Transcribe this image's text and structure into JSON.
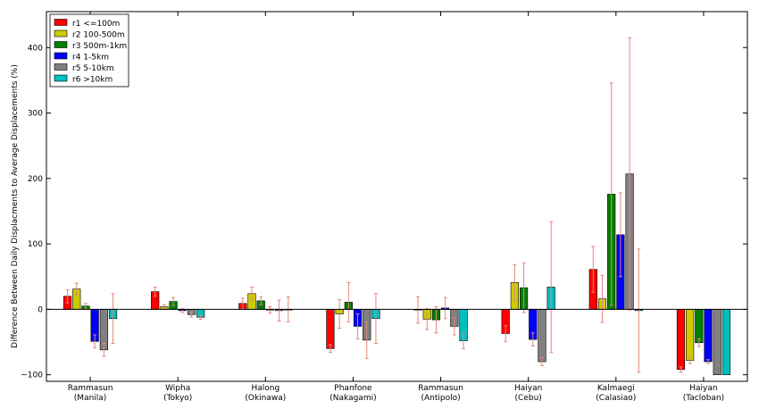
{
  "chart_data": {
    "type": "bar",
    "title": "",
    "xlabel": "",
    "ylabel": "Difference Between Daily Displacments to Average Displacements (%)",
    "ylim": [
      -110,
      455
    ],
    "yticks": [
      -100,
      0,
      100,
      200,
      300,
      400
    ],
    "grid": false,
    "legend_position": "top-left",
    "categories": [
      [
        "Rammasun",
        "(Manila)"
      ],
      [
        "Wipha",
        "(Tokyo)"
      ],
      [
        "Halong",
        "(Okinawa)"
      ],
      [
        "Phanfone",
        "(Nakagami)"
      ],
      [
        "Rammasun",
        "(Antipolo)"
      ],
      [
        "Haiyan",
        "(Cebu)"
      ],
      [
        "Kalmaegi",
        "(Calasiao)"
      ],
      [
        "Haiyan",
        "(Tacloban)"
      ]
    ],
    "error_color": "#e3877c",
    "series": [
      {
        "name": "r1 <=100m",
        "color": "#ff0000",
        "values": [
          20,
          27,
          9,
          -60,
          -1,
          -37,
          61,
          -92
        ],
        "errors": [
          10,
          7,
          8,
          6,
          20,
          12,
          35,
          4
        ]
      },
      {
        "name": "r2 100-500m",
        "color": "#cccc00",
        "values": [
          31,
          4,
          24,
          -7,
          -15,
          41,
          16,
          -78
        ],
        "errors": [
          9,
          3,
          10,
          22,
          16,
          27,
          36,
          5
        ]
      },
      {
        "name": "r3 500m-1km",
        "color": "#008000",
        "values": [
          5,
          12,
          13,
          11,
          -16,
          33,
          176,
          -51
        ],
        "errors": [
          4,
          6,
          6,
          30,
          20,
          38,
          170,
          6
        ]
      },
      {
        "name": "r4 1-5km",
        "color": "#0000ff",
        "values": [
          -49,
          -2,
          -1,
          -26,
          2,
          -46,
          114,
          -80
        ],
        "errors": [
          10,
          3,
          5,
          19,
          16,
          10,
          64,
          3
        ]
      },
      {
        "name": "r5 5-10km",
        "color": "#808080",
        "values": [
          -62,
          -8,
          -2,
          -47,
          -26,
          -80,
          207,
          -100
        ],
        "errors": [
          10,
          4,
          16,
          28,
          13,
          6,
          208,
          0
        ]
      },
      {
        "name": "r6 >10km",
        "color": "#00bfbf",
        "values": [
          -14,
          -12,
          0,
          -14,
          -48,
          34,
          -2,
          -100
        ],
        "errors": [
          38,
          3,
          19,
          38,
          12,
          100,
          94,
          0
        ]
      }
    ]
  }
}
